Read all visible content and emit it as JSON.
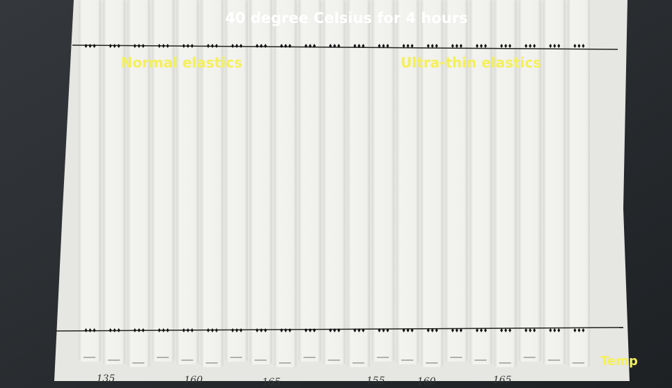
{
  "overlay": {
    "title": "40 degree Celsius for 4 hours",
    "groups": [
      "Normal elastics",
      "Ultra-thin elastics"
    ],
    "note": "Temp"
  },
  "handwriting": [
    "135",
    "160",
    "165",
    "155",
    "160",
    "165"
  ]
}
